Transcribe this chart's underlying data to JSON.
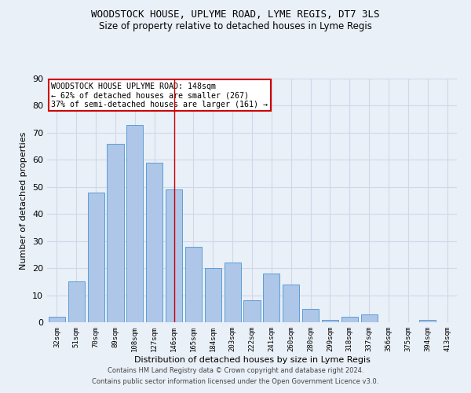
{
  "title": "WOODSTOCK HOUSE, UPLYME ROAD, LYME REGIS, DT7 3LS",
  "subtitle": "Size of property relative to detached houses in Lyme Regis",
  "xlabel": "Distribution of detached houses by size in Lyme Regis",
  "ylabel": "Number of detached properties",
  "categories": [
    "32sqm",
    "51sqm",
    "70sqm",
    "89sqm",
    "108sqm",
    "127sqm",
    "146sqm",
    "165sqm",
    "184sqm",
    "203sqm",
    "222sqm",
    "241sqm",
    "260sqm",
    "280sqm",
    "299sqm",
    "318sqm",
    "337sqm",
    "356sqm",
    "375sqm",
    "394sqm",
    "413sqm"
  ],
  "values": [
    2,
    15,
    48,
    66,
    73,
    59,
    49,
    28,
    20,
    22,
    8,
    18,
    14,
    5,
    1,
    2,
    3,
    0,
    0,
    1,
    0
  ],
  "bar_color": "#aec6e8",
  "bar_edge_color": "#5a9fd4",
  "red_line_index": 6,
  "annotation_text": "WOODSTOCK HOUSE UPLYME ROAD: 148sqm\n← 62% of detached houses are smaller (267)\n37% of semi-detached houses are larger (161) →",
  "annotation_box_color": "#ffffff",
  "annotation_box_edge_color": "#cc0000",
  "red_line_color": "#cc0000",
  "grid_color": "#d0d8e8",
  "bg_color": "#eaf0f8",
  "footer_line1": "Contains HM Land Registry data © Crown copyright and database right 2024.",
  "footer_line2": "Contains public sector information licensed under the Open Government Licence v3.0.",
  "ylim": [
    0,
    90
  ],
  "yticks": [
    0,
    10,
    20,
    30,
    40,
    50,
    60,
    70,
    80,
    90
  ]
}
